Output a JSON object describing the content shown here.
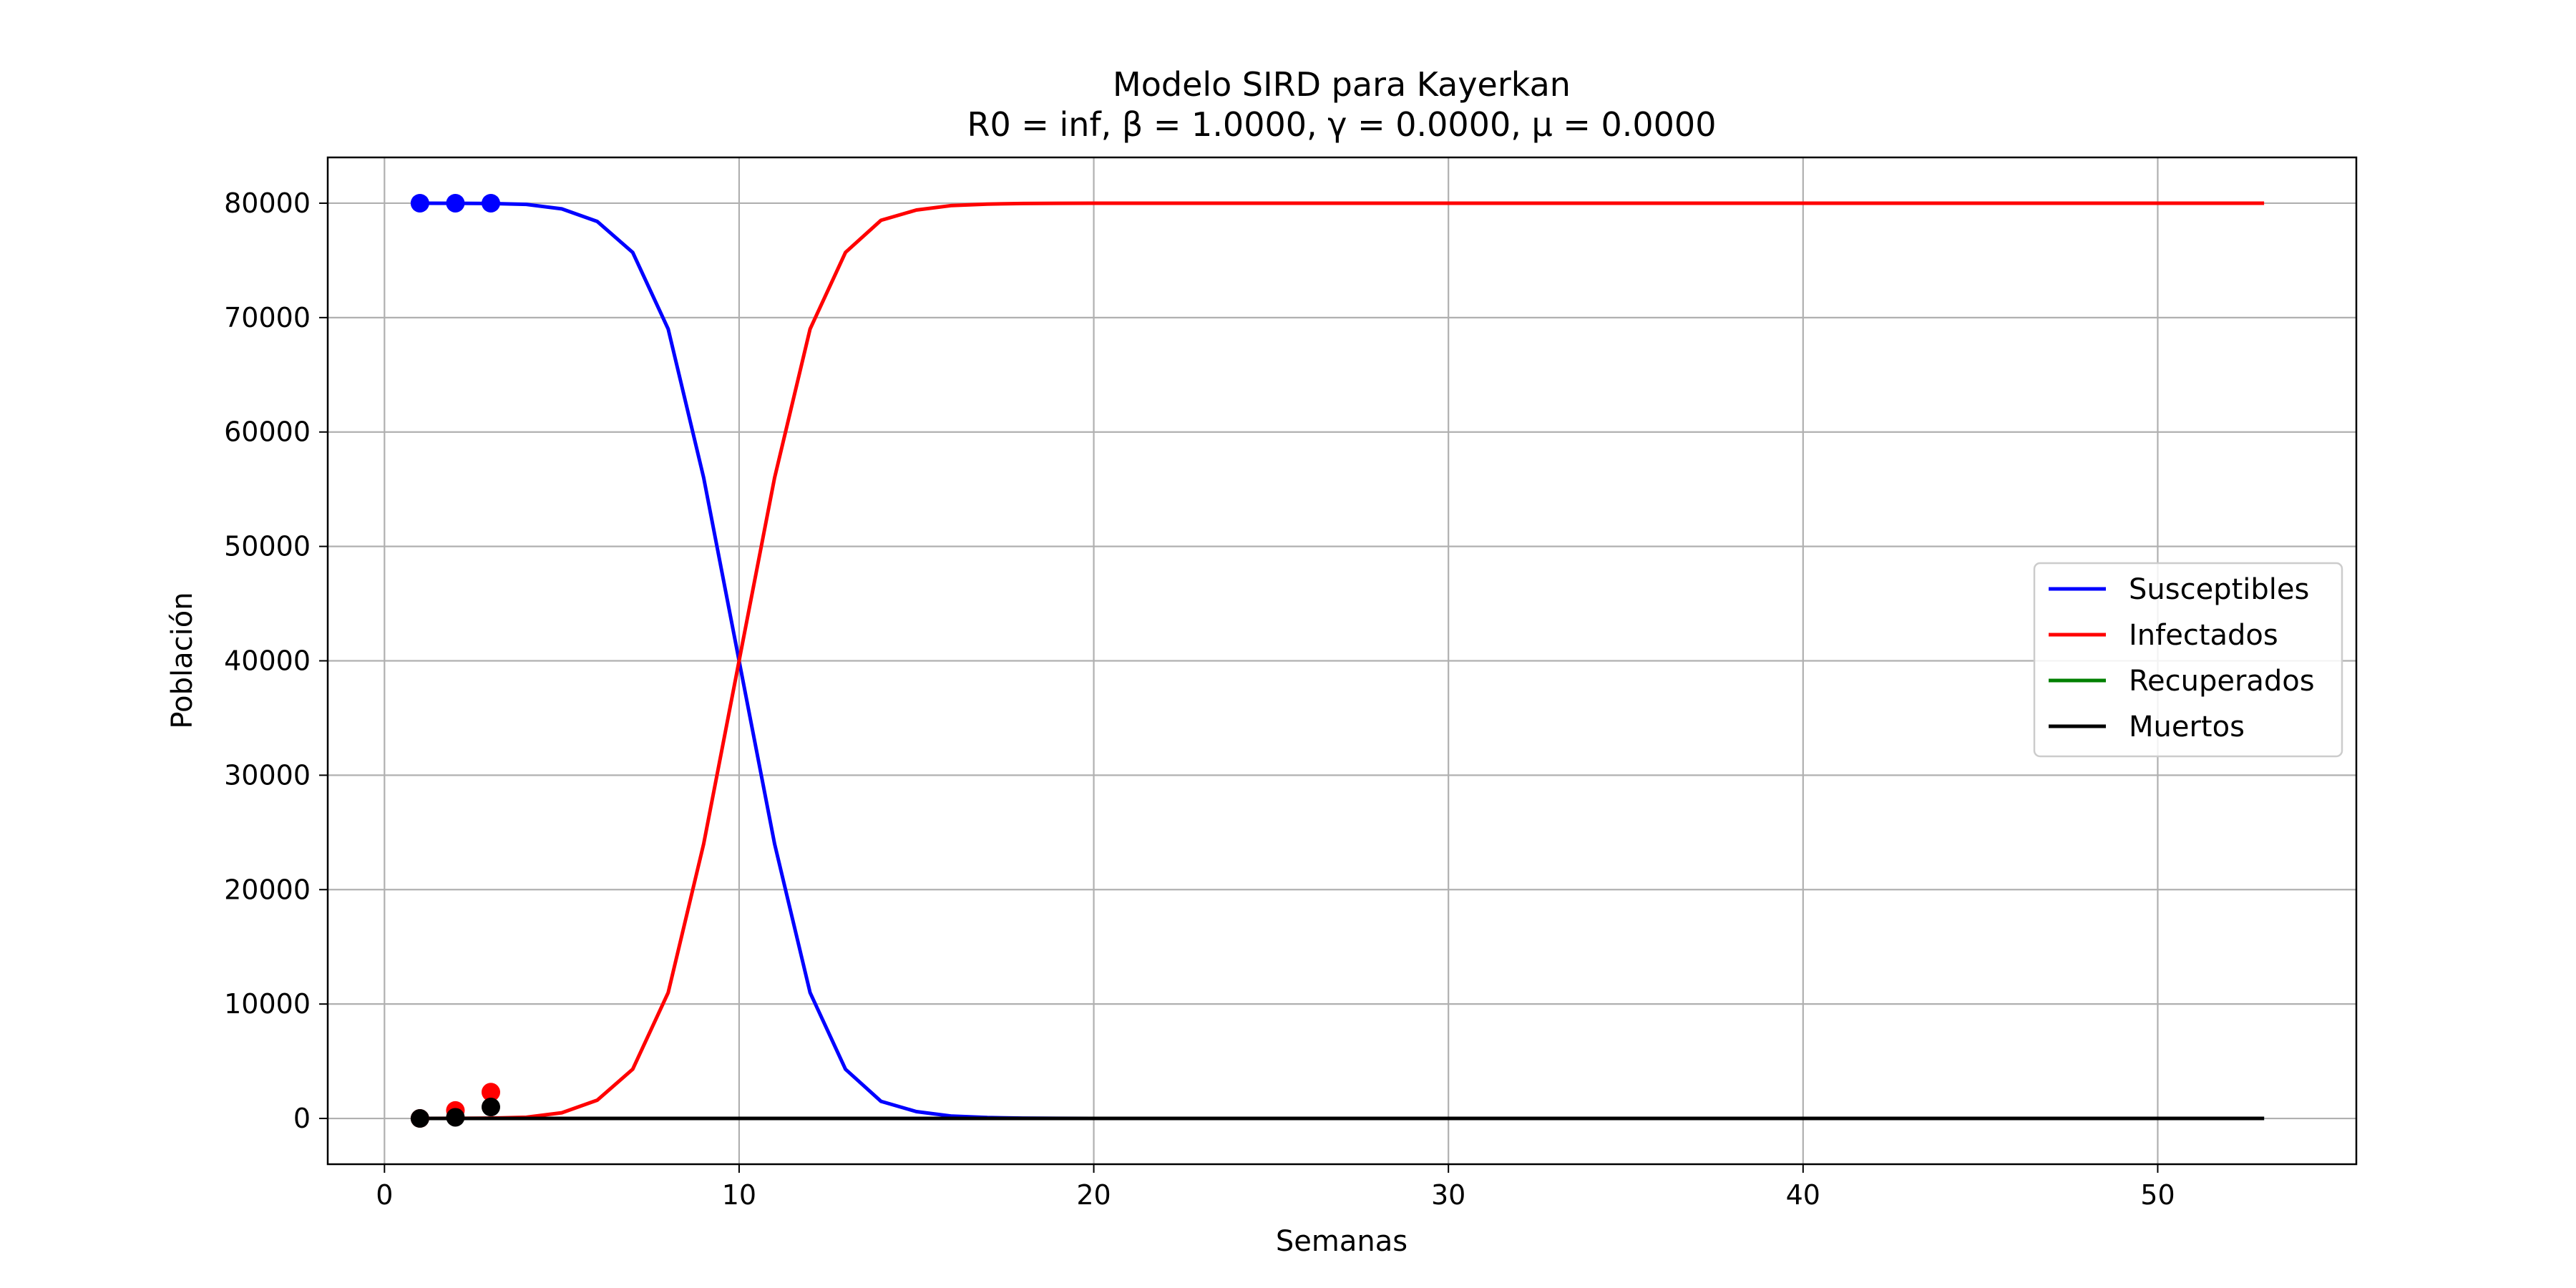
{
  "chart_data": {
    "type": "line",
    "title": "Modelo SIRD para Kayerkan",
    "subtitle": "R0 = inf, β = 1.0000, γ = 0.0000, μ = 0.0000",
    "xlabel": "Semanas",
    "ylabel": "Población",
    "xlim": [
      -1.6,
      55.6
    ],
    "ylim": [
      -4000,
      84000
    ],
    "xticks": [
      0,
      10,
      20,
      30,
      40,
      50
    ],
    "xtick_labels": [
      "0",
      "10",
      "20",
      "30",
      "40",
      "50"
    ],
    "yticks": [
      0,
      10000,
      20000,
      30000,
      40000,
      50000,
      60000,
      70000,
      80000
    ],
    "ytick_labels": [
      "0",
      "10000",
      "20000",
      "30000",
      "40000",
      "50000",
      "60000",
      "70000",
      "80000"
    ],
    "grid": true,
    "legend_position": "center-right",
    "x": [
      1,
      2,
      3,
      4,
      5,
      6,
      7,
      8,
      9,
      10,
      11,
      12,
      13,
      14,
      15,
      16,
      17,
      18,
      19,
      20,
      21,
      22,
      23,
      24,
      25,
      26,
      27,
      28,
      29,
      30,
      31,
      32,
      33,
      34,
      35,
      36,
      37,
      38,
      39,
      40,
      41,
      42,
      43,
      44,
      45,
      46,
      47,
      48,
      49,
      50,
      51,
      52,
      53
    ],
    "series": [
      {
        "name": "Susceptibles",
        "color": "#0000ff",
        "values": [
          80000,
          79990,
          79970,
          79900,
          79500,
          78400,
          75700,
          69000,
          56000,
          40000,
          24000,
          11000,
          4300,
          1500,
          600,
          200,
          80,
          30,
          10,
          0,
          0,
          0,
          0,
          0,
          0,
          0,
          0,
          0,
          0,
          0,
          0,
          0,
          0,
          0,
          0,
          0,
          0,
          0,
          0,
          0,
          0,
          0,
          0,
          0,
          0,
          0,
          0,
          0,
          0,
          0,
          0,
          0,
          0
        ]
      },
      {
        "name": "Infectados",
        "color": "#ff0000",
        "values": [
          0,
          10,
          30,
          100,
          500,
          1600,
          4300,
          11000,
          24000,
          40000,
          56000,
          69000,
          75700,
          78500,
          79400,
          79800,
          79920,
          79970,
          79990,
          80000,
          80000,
          80000,
          80000,
          80000,
          80000,
          80000,
          80000,
          80000,
          80000,
          80000,
          80000,
          80000,
          80000,
          80000,
          80000,
          80000,
          80000,
          80000,
          80000,
          80000,
          80000,
          80000,
          80000,
          80000,
          80000,
          80000,
          80000,
          80000,
          80000,
          80000,
          80000,
          80000,
          80000
        ]
      },
      {
        "name": "Recuperados",
        "color": "#008000",
        "values": [
          0,
          0,
          0,
          0,
          0,
          0,
          0,
          0,
          0,
          0,
          0,
          0,
          0,
          0,
          0,
          0,
          0,
          0,
          0,
          0,
          0,
          0,
          0,
          0,
          0,
          0,
          0,
          0,
          0,
          0,
          0,
          0,
          0,
          0,
          0,
          0,
          0,
          0,
          0,
          0,
          0,
          0,
          0,
          0,
          0,
          0,
          0,
          0,
          0,
          0,
          0,
          0,
          0
        ]
      },
      {
        "name": "Muertos",
        "color": "#000000",
        "values": [
          0,
          0,
          0,
          0,
          0,
          0,
          0,
          0,
          0,
          0,
          0,
          0,
          0,
          0,
          0,
          0,
          0,
          0,
          0,
          0,
          0,
          0,
          0,
          0,
          0,
          0,
          0,
          0,
          0,
          0,
          0,
          0,
          0,
          0,
          0,
          0,
          0,
          0,
          0,
          0,
          0,
          0,
          0,
          0,
          0,
          0,
          0,
          0,
          0,
          0,
          0,
          0,
          0
        ]
      }
    ],
    "observed_points": [
      {
        "series": "Susceptibles",
        "color": "#0000ff",
        "x": [
          1,
          2,
          3
        ],
        "y": [
          80000,
          80000,
          80000
        ]
      },
      {
        "series": "Infectados",
        "color": "#ff0000",
        "x": [
          1,
          2,
          3
        ],
        "y": [
          0,
          700,
          2300
        ]
      },
      {
        "series": "Muertos",
        "color": "#000000",
        "x": [
          1,
          2,
          3
        ],
        "y": [
          0,
          100,
          1000
        ]
      }
    ]
  }
}
